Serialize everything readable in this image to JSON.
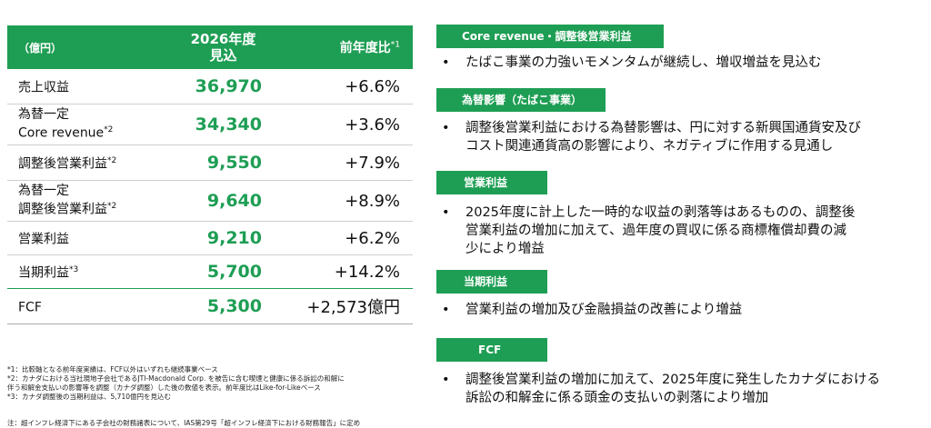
{
  "table": {
    "header": {
      "col1": "（億円）",
      "col2_line1": "2026年度",
      "col2_line2": "見込",
      "col3": "前年度比",
      "col3_sup": "*1"
    },
    "rows": [
      {
        "label1": "売上収益",
        "label2": "",
        "sup": "",
        "value": "36,970",
        "change": "+6.6%"
      },
      {
        "label1": "為替一定",
        "label2": "Core revenue",
        "sup": "*2",
        "value": "34,340",
        "change": "+3.6%"
      },
      {
        "label1": "調整後営業利益",
        "label2": "",
        "sup": "*2",
        "value": "9,550",
        "change": "+7.9%"
      },
      {
        "label1": "為替一定",
        "label2": "調整後営業利益",
        "sup": "*2",
        "value": "9,640",
        "change": "+8.9%"
      },
      {
        "label1": "営業利益",
        "label2": "",
        "sup": "",
        "value": "9,210",
        "change": "+6.2%"
      },
      {
        "label1": "当期利益",
        "label2": "",
        "sup": "*3",
        "value": "5,700",
        "change": "+14.2%"
      },
      {
        "label1": "FCF",
        "label2": "",
        "sup": "",
        "value": "5,300",
        "change": "+2,573億円"
      }
    ]
  },
  "notes": [
    "*1：比較軸となる前年度実績は、FCF以外はいずれも継続事業ベース",
    "*2：カナダにおける当社現地子会社であるJTI-Macdonald Corp. を被告に含む喫煙と健康に係る訴訟の和解に",
    "伴う和解金支払いの影響等を調整（カナダ調整）した後の数値を表示。前年度比はLike-for-Likeベース",
    "*3：カナダ調整後の当期利益は、5,710億円を見込む"
  ],
  "note_bottom": "注：超インフレ経済下にある子会社の財務諸表について、IAS第29号「超インフレ経済下における財務報告」に定め",
  "sections": [
    {
      "header": "Core revenue・調整後営業利益",
      "text": [
        "たばこ事業の力強いモメンタムが継続し、増収増益を見込む"
      ]
    },
    {
      "header": "為替影響（たばこ事業）",
      "text": [
        "調整後営業利益における為替影響は、円に対する新興国通貨安及び",
        "コスト関連通貨高の影響により、ネガティブに作用する見通し"
      ]
    },
    {
      "header": "営業利益",
      "text": [
        "2025年度に計上した一時的な収益の剥落等はあるものの、調整後",
        "営業利益の増加に加えて、過年度の買収に係る商標権償却費の減",
        "少により増益"
      ]
    },
    {
      "header": "当期利益",
      "text": [
        "営業利益の増加及び金融損益の改善により増益"
      ]
    },
    {
      "header": "FCF",
      "text": [
        "調整後営業利益の増加に加えて、2025年度に発生したカナダにおける",
        "訴訟の和解金に係る頭金の支払いの剥落により増加"
      ]
    }
  ],
  "bullet_char": "•",
  "colors": {
    "accent": "#1e9e54"
  }
}
